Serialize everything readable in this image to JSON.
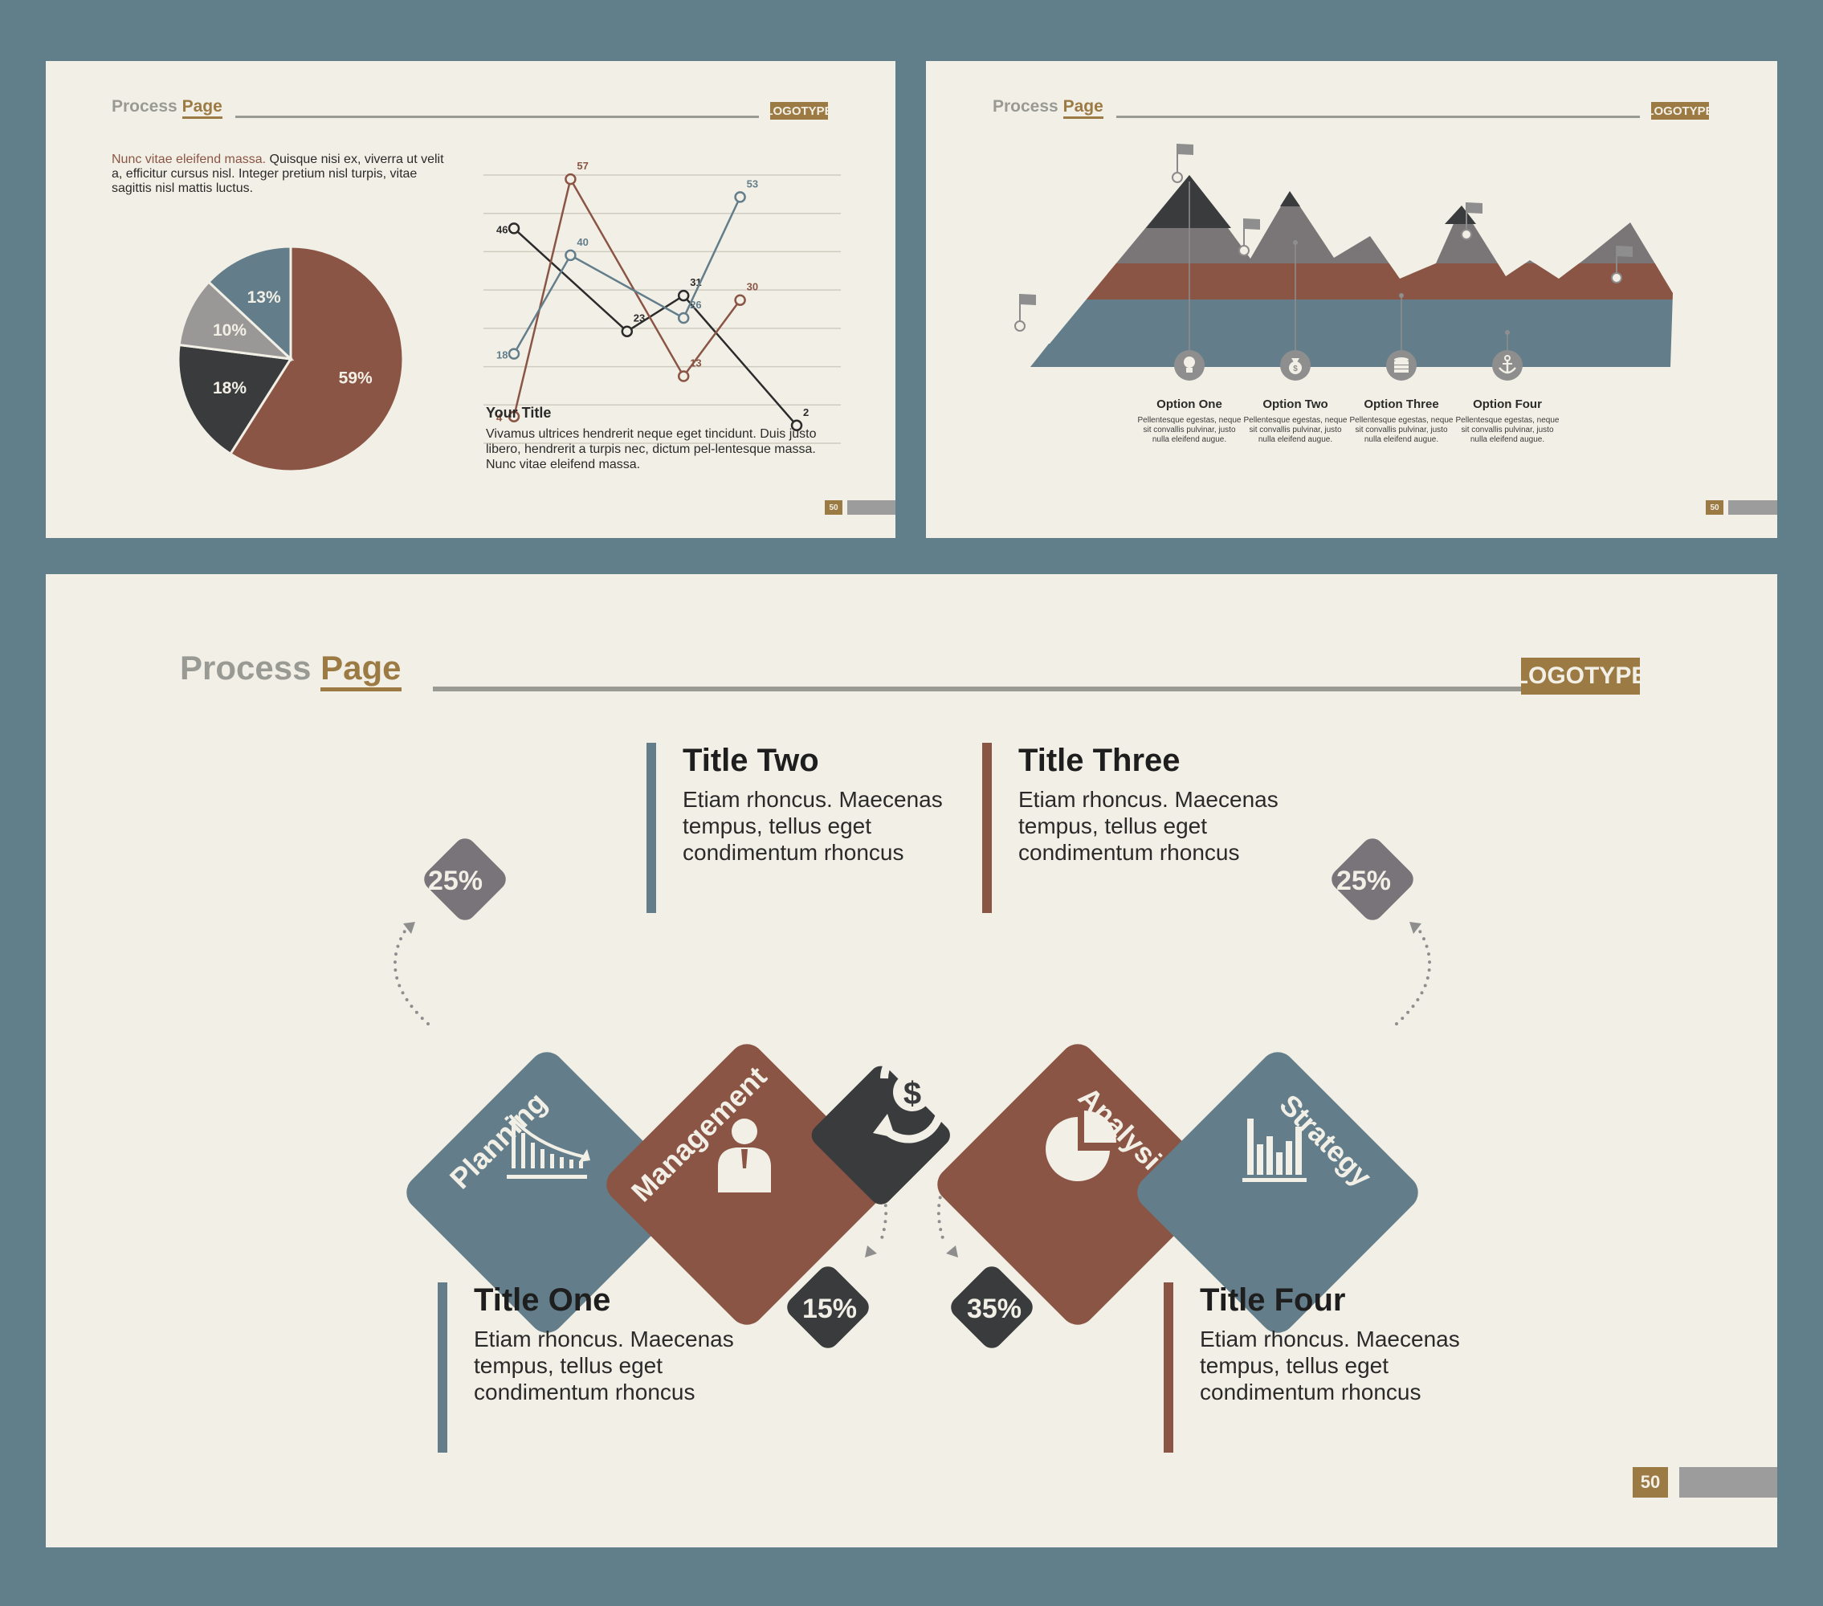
{
  "header": {
    "word1": "Process",
    "word2": "Page",
    "logotype": "LOGOTYPE",
    "page_number": "50"
  },
  "colors": {
    "brown": "#8b5545",
    "slate": "#637e8a",
    "dark": "#3a3b3d",
    "gray": "#9a9897",
    "gold": "#9c7a44"
  },
  "slide1": {
    "intro_highlight": "Nunc vitae eleifend massa.",
    "intro_rest": " Quisque nisi ex, viverra ut velit a, efficitur cursus nisl. Integer pretium nisl turpis, vitae sagittis nisl mattis luctus.",
    "your_title": "Your Title",
    "your_text": "Vivamus ultrices hendrerit neque eget tincidunt. Duis justo libero, hendrerit a turpis nec, dictum pel-lentesque massa. Nunc vitae eleifend massa."
  },
  "slide2": {
    "options": [
      {
        "title": "Option One",
        "text": "Pellentesque egestas, neque sit convallis pulvinar, justo nulla eleifend augue.",
        "icon": "lightbulb-icon"
      },
      {
        "title": "Option Two",
        "text": "Pellentesque egestas, neque sit convallis pulvinar, justo nulla eleifend augue.",
        "icon": "money-bag-icon"
      },
      {
        "title": "Option Three",
        "text": "Pellentesque egestas, neque sit convallis pulvinar, justo nulla eleifend augue.",
        "icon": "coin-stack-icon"
      },
      {
        "title": "Option Four",
        "text": "Pellentesque egestas, neque sit convallis pulvinar, justo nulla eleifend augue.",
        "icon": "anchor-icon"
      }
    ]
  },
  "slide3": {
    "titles": [
      {
        "title": "Title One",
        "text": "Etiam rhoncus. Maecenas tempus, tellus eget condimentum rhoncus"
      },
      {
        "title": "Title Two",
        "text": "Etiam rhoncus. Maecenas tempus, tellus eget condimentum rhoncus"
      },
      {
        "title": "Title Three",
        "text": "Etiam rhoncus. Maecenas tempus, tellus eget condimentum rhoncus"
      },
      {
        "title": "Title Four",
        "text": "Etiam rhoncus. Maecenas tempus, tellus eget condimentum rhoncus"
      }
    ],
    "diamonds": [
      {
        "label": "Planning",
        "icon": "declining-chart-icon"
      },
      {
        "label": "Management",
        "icon": "person-icon"
      },
      {
        "label": "Analysis",
        "icon": "pie-chart-icon"
      },
      {
        "label": "Strategy",
        "icon": "bar-chart-icon"
      }
    ],
    "center_icon": "dollar-cycle-icon",
    "percents": [
      "25%",
      "15%",
      "35%",
      "25%"
    ]
  },
  "chart_data": [
    {
      "type": "pie",
      "slices": [
        {
          "label": "59%",
          "value": 59,
          "color": "#8b5545"
        },
        {
          "label": "18%",
          "value": 18,
          "color": "#3a3b3d"
        },
        {
          "label": "10%",
          "value": 10,
          "color": "#9a9897"
        },
        {
          "label": "13%",
          "value": 13,
          "color": "#637e8a"
        }
      ]
    },
    {
      "type": "line",
      "x": [
        1,
        2,
        3,
        4,
        5,
        6
      ],
      "ylim": [
        0,
        60
      ],
      "grid": true,
      "series": [
        {
          "color": "#2b2b2b",
          "values": [
            46,
            null,
            23,
            31,
            null,
            2
          ]
        },
        {
          "color": "#8b5545",
          "values": [
            4,
            57,
            null,
            13,
            30,
            null
          ]
        },
        {
          "color": "#637e8a",
          "values": [
            18,
            40,
            null,
            26,
            53,
            null
          ]
        }
      ]
    }
  ]
}
